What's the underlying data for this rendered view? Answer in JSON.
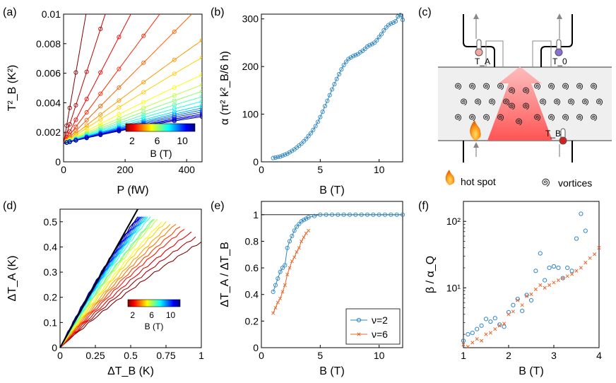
{
  "panels": {
    "a": "(a)",
    "b": "(b)",
    "c": "(c)",
    "d": "(d)",
    "e": "(e)",
    "f": "(f)"
  },
  "chart_data": [
    {
      "id": "a",
      "type": "line",
      "title": "",
      "xlabel": "P (fW)",
      "ylabel": "T²_B (K²)",
      "xlim": [
        0,
        450
      ],
      "ylim": [
        0,
        0.01
      ],
      "xticks": [
        "0",
        "200",
        "400"
      ],
      "yticks": [
        "0",
        "0.002",
        "0.004",
        "0.006",
        "0.008",
        "0.01"
      ],
      "colorbar": {
        "label": "B (T)",
        "ticks": [
          "2",
          "6",
          "10"
        ],
        "range": [
          1,
          12
        ]
      },
      "series": [
        {
          "B": 1.0,
          "slope": 0.00012
        },
        {
          "B": 1.6,
          "slope": 6.46e-05
        },
        {
          "B": 2.2,
          "slope": 4e-05
        },
        {
          "B": 2.8,
          "slope": 2.8e-05
        },
        {
          "B": 3.4,
          "slope": 2.1e-05
        },
        {
          "B": 4.0,
          "slope": 1.65e-05
        },
        {
          "B": 4.6,
          "slope": 1.39e-05
        },
        {
          "B": 5.2,
          "slope": 1.13e-05
        },
        {
          "B": 5.8,
          "slope": 9.8e-06
        },
        {
          "B": 6.4,
          "slope": 8.8e-06
        },
        {
          "B": 7.0,
          "slope": 8e-06
        },
        {
          "B": 7.6,
          "slope": 7.3e-06
        },
        {
          "B": 8.2,
          "slope": 6.7e-06
        },
        {
          "B": 8.8,
          "slope": 6.3e-06
        },
        {
          "B": 9.4,
          "slope": 6e-06
        },
        {
          "B": 10.0,
          "slope": 5.7e-06
        },
        {
          "B": 10.6,
          "slope": 5.4e-06
        },
        {
          "B": 11.2,
          "slope": 5.2e-06
        },
        {
          "B": 11.8,
          "slope": 5e-06
        }
      ],
      "intercept": 0.00125,
      "curvature": 2.2e-09,
      "point_x": [
        10,
        20,
        40,
        75,
        120,
        180,
        260,
        360,
        450
      ]
    },
    {
      "id": "b",
      "type": "line",
      "title": "",
      "xlabel": "B (T)",
      "ylabel": "α (π² k²_B/6 h)",
      "xlim": [
        0,
        12
      ],
      "ylim": [
        0,
        310
      ],
      "xticks": [
        "0",
        "5",
        "10"
      ],
      "yticks": [
        "0",
        "100",
        "200",
        "300"
      ],
      "x": [
        1.0,
        1.2,
        1.4,
        1.6,
        1.8,
        2.0,
        2.2,
        2.4,
        2.6,
        2.8,
        3.0,
        3.2,
        3.4,
        3.6,
        3.8,
        4.0,
        4.2,
        4.4,
        4.6,
        4.8,
        5.0,
        5.2,
        5.4,
        5.6,
        5.8,
        6.0,
        6.2,
        6.4,
        6.6,
        6.8,
        7.0,
        7.2,
        7.4,
        7.6,
        7.8,
        8.0,
        8.2,
        8.4,
        8.6,
        8.8,
        9.0,
        9.2,
        9.4,
        9.6,
        9.8,
        10.0,
        10.2,
        10.4,
        10.6,
        10.8,
        11.0,
        11.2,
        11.4,
        11.6,
        11.8,
        12.0
      ],
      "y": [
        8,
        9,
        10,
        11,
        13,
        15,
        17,
        20,
        23,
        26,
        30,
        34,
        38,
        43,
        48,
        54,
        60,
        67,
        75,
        84,
        94,
        105,
        117,
        128,
        140,
        152,
        163,
        174,
        184,
        194,
        203,
        210,
        216,
        219,
        222,
        224,
        226,
        230,
        233,
        237,
        242,
        245,
        247,
        250,
        255,
        262,
        268,
        276,
        282,
        287,
        290,
        292,
        295,
        305,
        308,
        298
      ]
    },
    {
      "id": "d",
      "type": "line",
      "title": "",
      "xlabel": "ΔT_B (K)",
      "ylabel": "ΔT_A (K)",
      "xlim": [
        0,
        1
      ],
      "ylim": [
        0,
        0.55
      ],
      "xticks": [
        "0",
        "0.25",
        "0.5",
        "0.75",
        "1"
      ],
      "yticks": [
        "0",
        "0.1",
        "0.2",
        "0.3",
        "0.4",
        "0.5"
      ],
      "colorbar": {
        "label": "B (T)",
        "ticks": [
          "2",
          "6",
          "10"
        ],
        "range": [
          1,
          12
        ]
      },
      "ideal_line": {
        "x": [
          0,
          0.55
        ],
        "y": [
          0,
          0.55
        ]
      },
      "series_end_x": [
        1.0,
        0.96,
        0.93,
        0.88,
        0.85,
        0.82,
        0.78,
        0.75,
        0.72,
        0.69,
        0.67,
        0.66,
        0.64,
        0.62,
        0.61,
        0.6,
        0.59,
        0.58,
        0.57,
        0.56,
        0.55,
        0.55
      ],
      "series_end_y": [
        0.42,
        0.44,
        0.46,
        0.47,
        0.48,
        0.49,
        0.49,
        0.5,
        0.5,
        0.51,
        0.51,
        0.51,
        0.52,
        0.52,
        0.52,
        0.52,
        0.52,
        0.52,
        0.52,
        0.52,
        0.52,
        0.52
      ]
    },
    {
      "id": "e",
      "type": "line",
      "title": "",
      "xlabel": "B (T)",
      "ylabel": "ΔT_A / ΔT_B",
      "xlim": [
        0,
        12
      ],
      "ylim": [
        0,
        1.1
      ],
      "xticks": [
        "0",
        "5",
        "10"
      ],
      "yticks": [
        "0",
        "0.2",
        "0.4",
        "0.6",
        "0.8",
        "1"
      ],
      "legend": [
        "ν=2",
        "ν=6"
      ],
      "series": [
        {
          "name": "ν=2",
          "x": [
            1.0,
            1.2,
            1.4,
            1.6,
            1.8,
            2.0,
            2.2,
            2.4,
            2.6,
            2.8,
            3.0,
            3.2,
            3.4,
            3.6,
            3.8,
            4.0,
            4.5,
            5.0,
            5.5,
            6.0,
            6.5,
            7.0,
            7.5,
            8.0,
            8.5,
            9.0,
            9.5,
            10.0,
            10.5,
            11.0,
            11.5,
            12.0
          ],
          "y": [
            0.42,
            0.47,
            0.52,
            0.57,
            0.6,
            0.62,
            0.75,
            0.8,
            0.84,
            0.88,
            0.91,
            0.93,
            0.95,
            0.96,
            0.97,
            0.98,
            0.99,
            1.0,
            1.0,
            1.0,
            1.0,
            1.0,
            1.0,
            1.0,
            1.0,
            1.0,
            1.0,
            1.0,
            1.0,
            1.0,
            1.0,
            1.0
          ]
        },
        {
          "name": "ν=6",
          "x": [
            1.0,
            1.2,
            1.4,
            1.6,
            1.8,
            2.0,
            2.2,
            2.4,
            2.6,
            2.8,
            3.0,
            3.2,
            3.4,
            3.6,
            3.8,
            4.0
          ],
          "y": [
            0.26,
            0.3,
            0.34,
            0.37,
            0.42,
            0.47,
            0.55,
            0.6,
            0.65,
            0.68,
            0.72,
            0.75,
            0.8,
            0.83,
            0.86,
            0.88
          ]
        }
      ],
      "reference_line_y": 1.0
    },
    {
      "id": "f",
      "type": "scatter",
      "title": "",
      "xlabel": "B (T)",
      "ylabel": "β / α_Q",
      "xlim": [
        1,
        4
      ],
      "ylim_log10": [
        0.1,
        2.3
      ],
      "xticks": [
        "1",
        "2",
        "3",
        "4"
      ],
      "yticks": [
        "10¹",
        "10²"
      ],
      "series": [
        {
          "name": "ν=2 (circles)",
          "x": [
            1.0,
            1.1,
            1.2,
            1.3,
            1.4,
            1.5,
            1.6,
            1.7,
            1.8,
            1.9,
            2.0,
            2.1,
            2.2,
            2.3,
            2.4,
            2.5,
            2.6,
            2.7,
            2.8,
            2.9,
            3.0,
            3.1,
            3.2,
            3.3,
            3.4,
            3.5,
            3.6,
            3.7
          ],
          "y": [
            1.6,
            2.0,
            2.1,
            2.4,
            2.7,
            3.4,
            3.1,
            3.5,
            2.8,
            2.6,
            4.3,
            5.5,
            6.8,
            4.5,
            7.8,
            6.5,
            18.0,
            33.0,
            13.0,
            20.0,
            21.0,
            20.0,
            14.0,
            20.0,
            18.0,
            55.0,
            130.0,
            72.0
          ]
        },
        {
          "name": "ν=6 (crosses)",
          "x": [
            1.0,
            1.1,
            1.2,
            1.3,
            1.4,
            1.5,
            1.6,
            1.7,
            1.8,
            1.9,
            2.0,
            2.1,
            2.2,
            2.3,
            2.4,
            2.5,
            2.6,
            2.7,
            2.8,
            2.9,
            3.0,
            3.1,
            3.2,
            3.3,
            3.4,
            3.5,
            3.6,
            3.7,
            3.8,
            3.9,
            4.0
          ],
          "y": [
            1.4,
            1.3,
            1.5,
            1.7,
            1.6,
            2.0,
            2.1,
            2.4,
            2.7,
            2.9,
            4.0,
            4.4,
            6.5,
            5.5,
            7.5,
            8.0,
            9.5,
            11.0,
            10.0,
            11.0,
            12.0,
            13.0,
            14.0,
            15.0,
            16.0,
            18.0,
            20.0,
            24.0,
            28.0,
            32.0,
            40.0
          ]
        }
      ]
    }
  ],
  "diagram": {
    "label_TA": "T_A",
    "label_T0": "T_0",
    "label_TB": "T_B",
    "legend_hotspot": "hot spot",
    "legend_vortices": "vortices"
  }
}
